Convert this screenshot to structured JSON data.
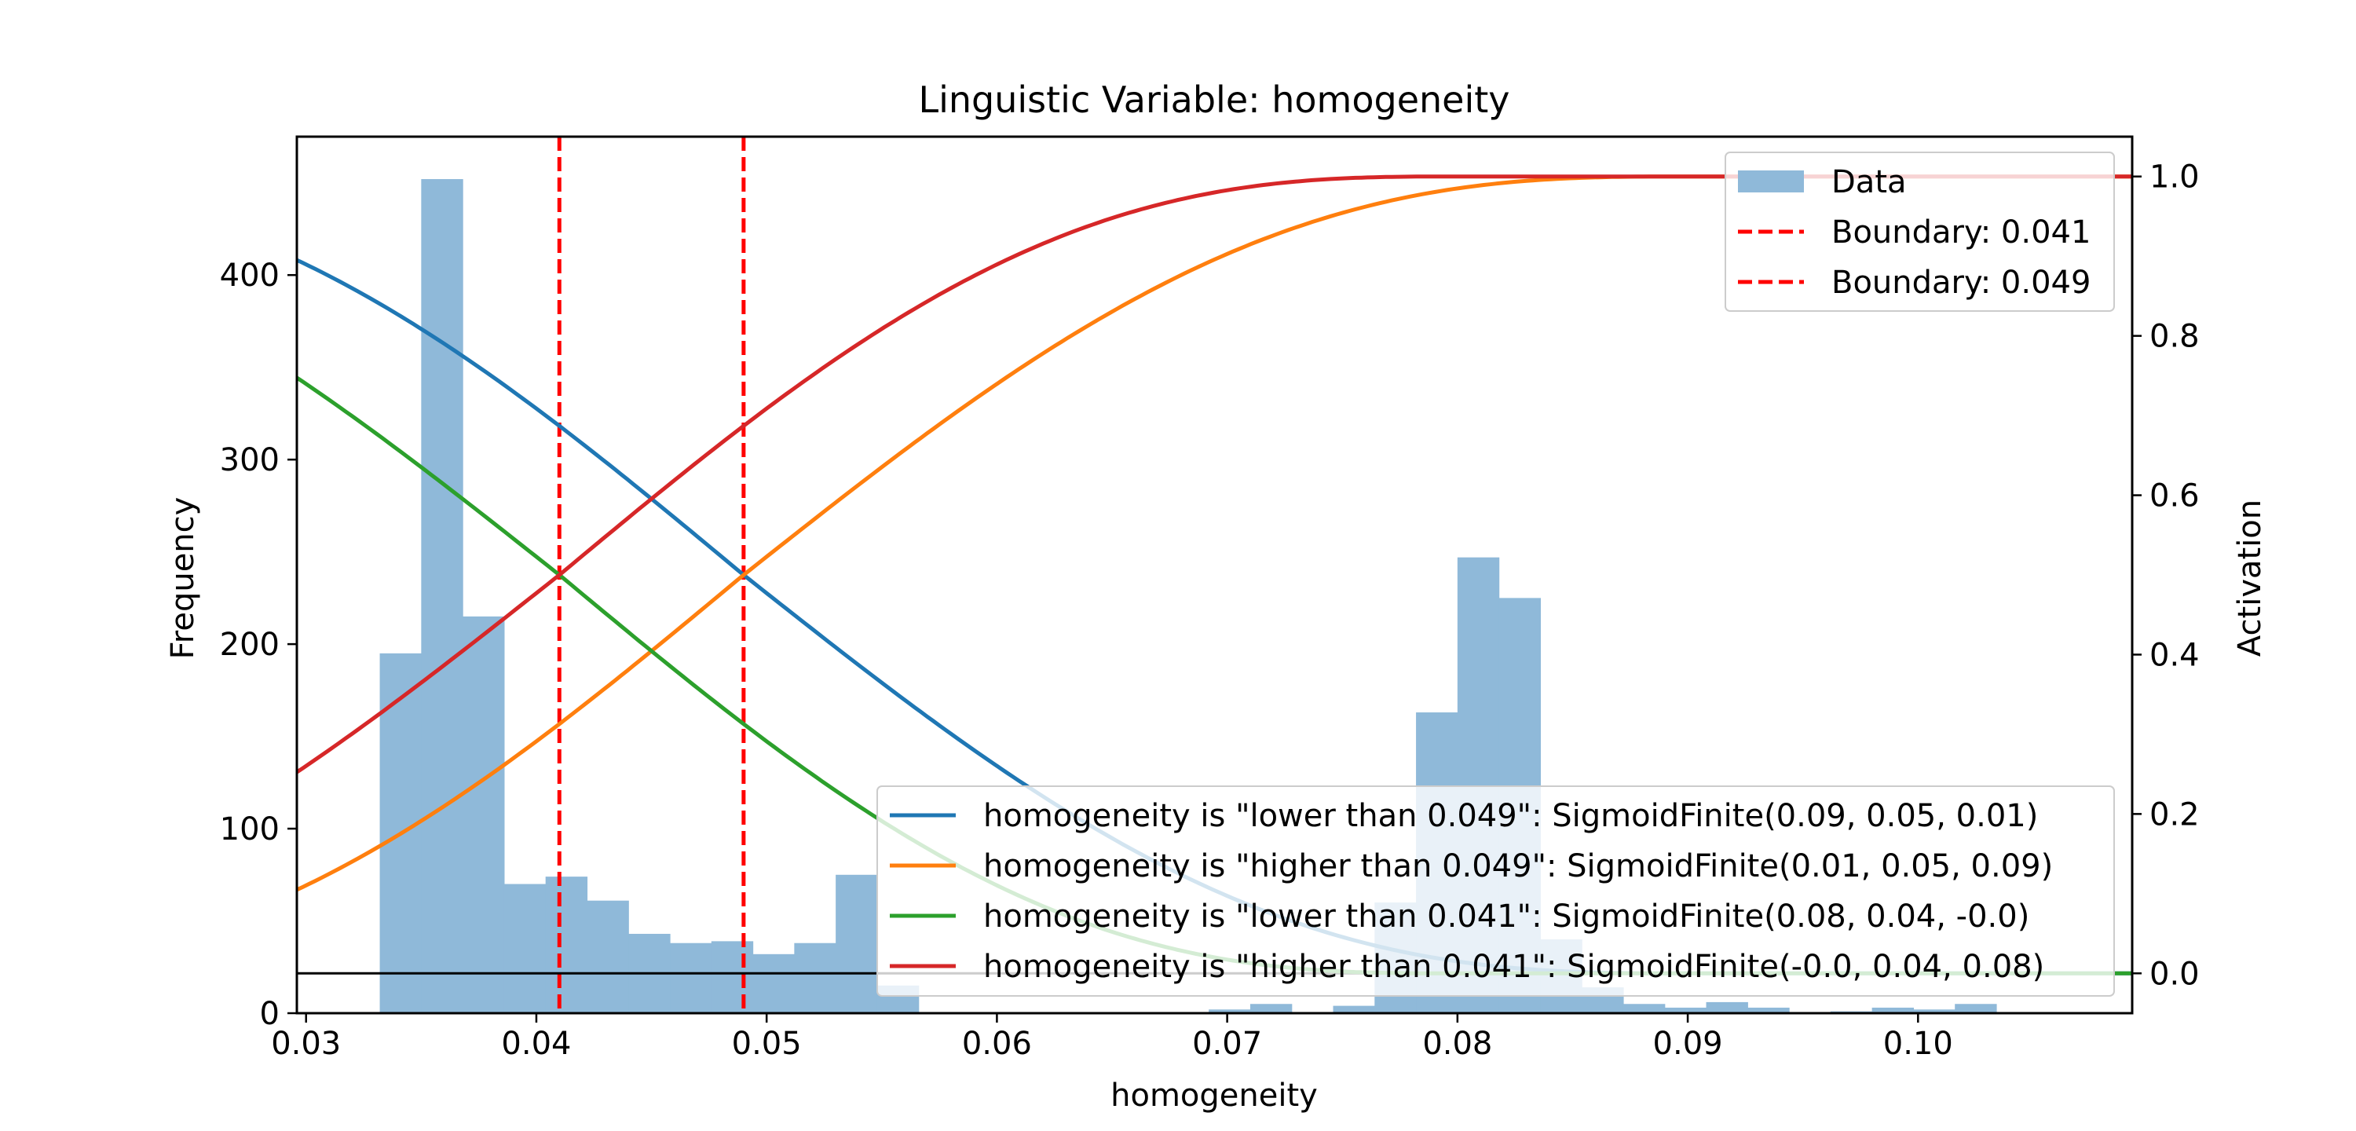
{
  "chart_data": {
    "title": "Linguistic Variable: homogeneity",
    "xlabel": "homogeneity",
    "ylabel_left": "Frequency",
    "ylabel_right": "Activation",
    "xlim": [
      0.0296,
      0.1093
    ],
    "ylim_left": [
      0,
      475
    ],
    "ylim_right": [
      -0.05,
      1.05
    ],
    "xticks": [
      0.03,
      0.04,
      0.05,
      0.06,
      0.07,
      0.08,
      0.09,
      0.1
    ],
    "xtick_labels": [
      "0.03",
      "0.04",
      "0.05",
      "0.06",
      "0.07",
      "0.08",
      "0.09",
      "0.10"
    ],
    "yticks_left": [
      0,
      100,
      200,
      300,
      400
    ],
    "ytick_labels_left": [
      "0",
      "100",
      "200",
      "300",
      "400"
    ],
    "yticks_right": [
      0,
      0.2,
      0.4,
      0.6,
      0.8,
      1.0
    ],
    "ytick_labels_right": [
      "0.0",
      "0.2",
      "0.4",
      "0.6",
      "0.8",
      "1.0"
    ],
    "histogram": {
      "name": "Data",
      "color": "#8fb9d9",
      "bin_start": 0.0332,
      "bin_width": 0.0018,
      "counts": [
        195,
        452,
        215,
        70,
        74,
        61,
        43,
        38,
        39,
        32,
        38,
        75,
        15,
        0,
        0,
        0,
        0,
        0,
        0,
        0,
        2,
        5,
        0,
        4,
        60,
        163,
        247,
        225,
        40,
        14,
        5,
        3,
        6,
        3,
        0,
        1,
        3,
        2,
        5,
        0,
        0
      ]
    },
    "boundaries": [
      {
        "name": "Boundary: 0.041",
        "x": 0.041,
        "color": "#ff0000"
      },
      {
        "name": "Boundary: 0.049",
        "x": 0.049,
        "color": "#ff0000"
      }
    ],
    "baseline_activation": 0.0,
    "series": [
      {
        "name": "homogeneity is \"lower than 0.049\": SigmoidFinite(0.09, 0.05, 0.01)",
        "color": "#1f77b4",
        "type": "lower",
        "a": 0.09,
        "b": 0.049,
        "c": 0.01
      },
      {
        "name": "homogeneity is \"higher than 0.049\": SigmoidFinite(0.01, 0.05, 0.09)",
        "color": "#ff7f0e",
        "type": "higher",
        "a": 0.01,
        "b": 0.049,
        "c": 0.09
      },
      {
        "name": "homogeneity is \"lower than 0.041\": SigmoidFinite(0.08, 0.04, -0.0)",
        "color": "#2ca02c",
        "type": "lower",
        "a": 0.08,
        "b": 0.041,
        "c": 0.0
      },
      {
        "name": "homogeneity is \"higher than 0.041\": SigmoidFinite(-0.0, 0.04, 0.08)",
        "color": "#d62728",
        "type": "higher",
        "a": 0.0,
        "b": 0.041,
        "c": 0.08
      }
    ]
  }
}
